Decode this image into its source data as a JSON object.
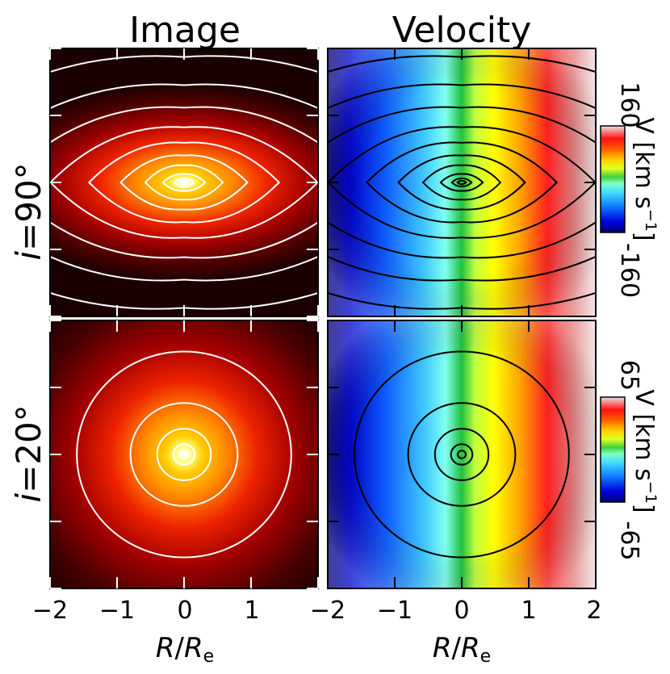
{
  "columns": {
    "image_title": "Image",
    "velocity_title": "Velocity"
  },
  "rows": [
    {
      "prefix": "i",
      "equals": "=",
      "inclination": "90°"
    },
    {
      "prefix": "i",
      "equals": "=",
      "inclination": "20°"
    }
  ],
  "colorbars": [
    {
      "title": "V [km s",
      "exponent": "−1",
      "close": "]",
      "max_label": "160",
      "min_label": "-160"
    },
    {
      "title": "V [km s",
      "exponent": "−1",
      "close": "]",
      "max_label": "65",
      "min_label": "-65"
    }
  ],
  "x_axis": {
    "label_main": "R",
    "label_slash": "/",
    "label_r": "R",
    "label_sub": "e",
    "ticks": [
      "−2",
      "−1",
      "0",
      "1",
      "2"
    ]
  },
  "colors": {
    "frame": "#000000",
    "image_contour": "#ffffff",
    "velocity_contour": "#000000"
  },
  "chart_data": [
    {
      "type": "heatmap",
      "title": "Image",
      "row": "i = 90°",
      "xlabel": "R/Re",
      "xlim": [
        -2,
        2
      ],
      "ylim": [
        -2,
        2
      ],
      "colormap": "hot",
      "contours": "elliptical isophotes of surface brightness, flattened (axis ratio ~0.45) with a bright central peak"
    },
    {
      "type": "heatmap",
      "title": "Velocity",
      "row": "i = 90°",
      "xlabel": "R/Re",
      "xlim": [
        -2,
        2
      ],
      "ylim": [
        -2,
        2
      ],
      "colormap": "jet",
      "vmin": -160,
      "vmax": 160,
      "colorbar_label": "V [km s^-1]",
      "contours": "same isophotes as Image panel",
      "rotation": "receding (positive) toward +R, approaching (negative) toward -R"
    },
    {
      "type": "heatmap",
      "title": "Image",
      "row": "i = 20°",
      "xlabel": "R/Re",
      "xlim": [
        -2,
        2
      ],
      "ylim": [
        -2,
        2
      ],
      "colormap": "hot",
      "contours": "nearly circular isophotes (axis ratio ~0.95) with a bright central peak"
    },
    {
      "type": "heatmap",
      "title": "Velocity",
      "row": "i = 20°",
      "xlabel": "R/Re",
      "xlim": [
        -2,
        2
      ],
      "ylim": [
        -2,
        2
      ],
      "colormap": "jet",
      "vmin": -65,
      "vmax": 65,
      "colorbar_label": "V [km s^-1]",
      "contours": "same isophotes as Image panel",
      "rotation": "receding (positive) toward +R, approaching (negative) toward -R"
    }
  ]
}
